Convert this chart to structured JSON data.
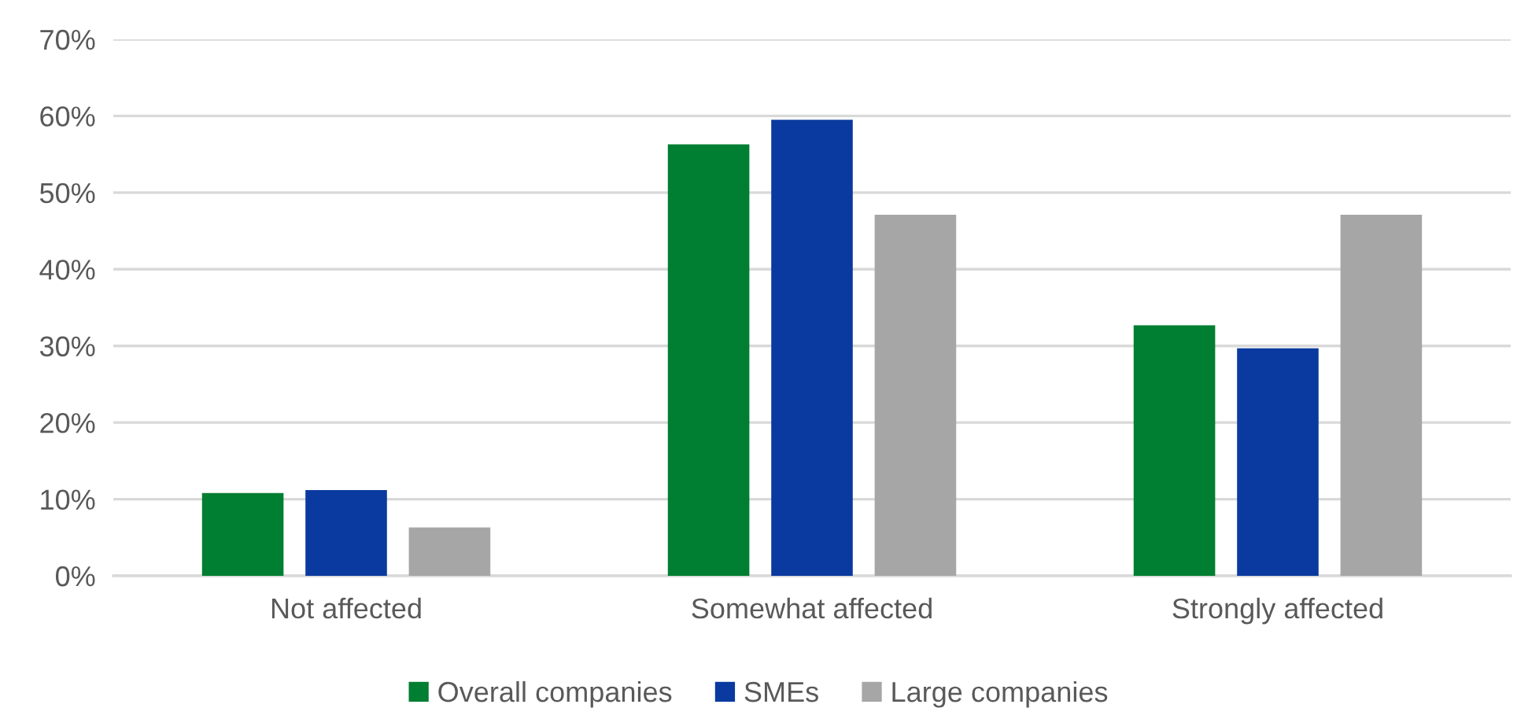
{
  "chart_data": {
    "type": "bar",
    "categories": [
      "Not affected",
      "Somewhat affected",
      "Strongly affected"
    ],
    "series": [
      {
        "name": "Overall companies",
        "color": "#007e31",
        "values": [
          10.8,
          56.3,
          32.7
        ]
      },
      {
        "name": "SMEs",
        "color": "#0a3a9f",
        "values": [
          11.2,
          59.5,
          29.7
        ]
      },
      {
        "name": "Large companies",
        "color": "#a6a6a6",
        "values": [
          6.3,
          47.1,
          47.1
        ]
      }
    ],
    "ylim": [
      0,
      70
    ],
    "yticks": [
      {
        "value": 0,
        "label": "0%"
      },
      {
        "value": 10,
        "label": "10%"
      },
      {
        "value": 20,
        "label": "20%"
      },
      {
        "value": 30,
        "label": "30%"
      },
      {
        "value": 40,
        "label": "40%"
      },
      {
        "value": 50,
        "label": "50%"
      },
      {
        "value": 60,
        "label": "60%"
      },
      {
        "value": 70,
        "label": "70%"
      }
    ],
    "grid": "y",
    "legend": "bottom"
  }
}
